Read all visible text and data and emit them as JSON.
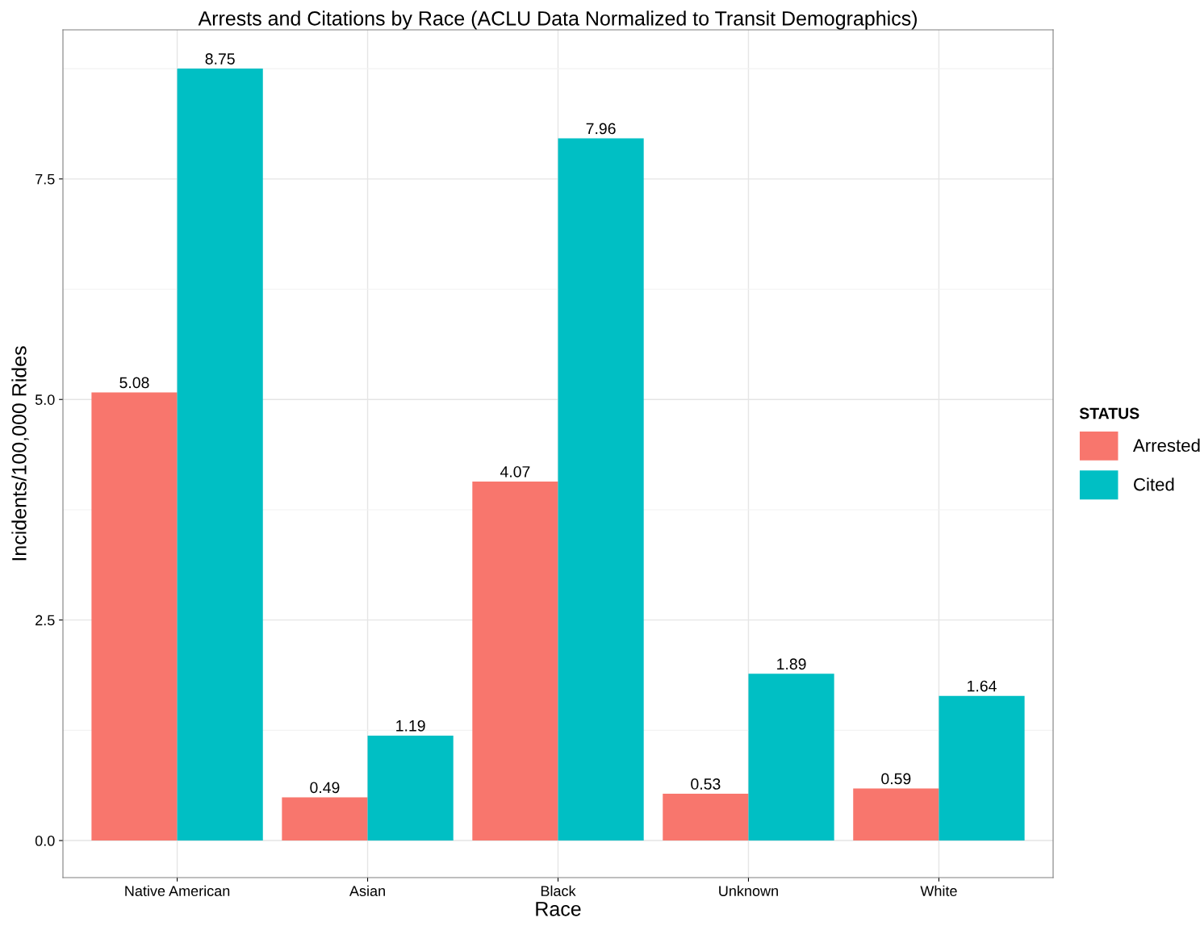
{
  "chart_data": {
    "type": "bar",
    "title": "Arrests and Citations by Race (ACLU Data Normalized to Transit Demographics)",
    "xlabel": "Race",
    "ylabel": "Incidents/100,000 Rides",
    "legend_title": "STATUS",
    "categories": [
      "Native American",
      "Asian",
      "Black",
      "Unknown",
      "White"
    ],
    "series": [
      {
        "name": "Arrested",
        "color": "#f8766d",
        "values": [
          5.08,
          0.49,
          4.07,
          0.53,
          0.59
        ]
      },
      {
        "name": "Cited",
        "color": "#00bfc4",
        "values": [
          8.75,
          1.19,
          7.96,
          1.89,
          1.64
        ]
      }
    ],
    "ylim": [
      -0.42,
      9.19
    ],
    "yticks": [
      {
        "value": 0,
        "label": "0.0"
      },
      {
        "value": 2.5,
        "label": "2.5"
      },
      {
        "value": 5,
        "label": "5.0"
      },
      {
        "value": 7.5,
        "label": "7.5"
      }
    ],
    "grid": true,
    "legend": "right",
    "data_labels": true
  }
}
